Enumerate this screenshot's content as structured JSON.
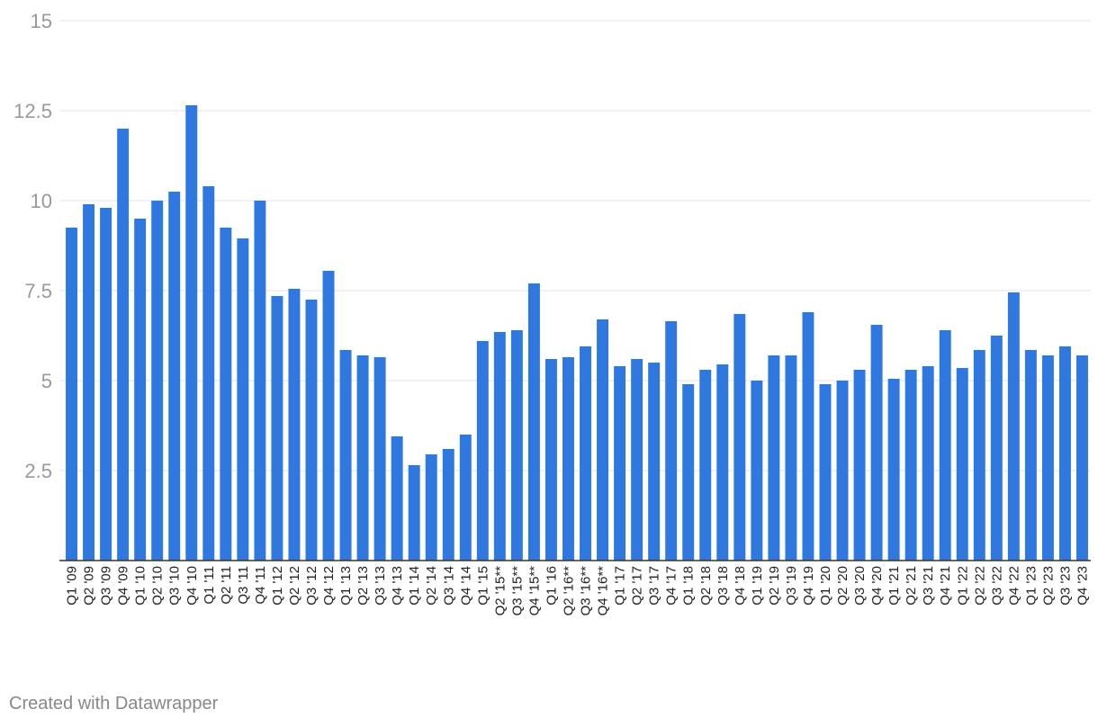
{
  "chart_data": {
    "type": "bar",
    "title": "",
    "xlabel": "",
    "ylabel": "",
    "ylim": [
      0,
      15
    ],
    "y_ticks": [
      2.5,
      5,
      7.5,
      10,
      12.5,
      15
    ],
    "y_tick_labels": [
      "2.5",
      "5",
      "7.5",
      "10",
      "12.5",
      "15"
    ],
    "grid": true,
    "bar_color": "#2f78df",
    "categories": [
      "Q1 '09",
      "Q2 '09",
      "Q3 '09",
      "Q4 '09",
      "Q1 '10",
      "Q2 '10",
      "Q3 '10",
      "Q4 '10",
      "Q1 '11",
      "Q2 '11",
      "Q3 '11",
      "Q4 '11",
      "Q1 '12",
      "Q2 '12",
      "Q3 '12",
      "Q4 '12",
      "Q1 '13",
      "Q2 '13",
      "Q3 '13",
      "Q4 '13",
      "Q1 '14",
      "Q2 '14",
      "Q3 '14",
      "Q4 '14",
      "Q1 '15",
      "Q2 '15**",
      "Q3 '15**",
      "Q4 '15**",
      "Q1 '16",
      "Q2 '16**",
      "Q3 '16**",
      "Q4 '16**",
      "Q1 '17",
      "Q2 '17",
      "Q3 '17",
      "Q4 '17",
      "Q1 '18",
      "Q2 '18",
      "Q3 '18",
      "Q4 '18",
      "Q1 '19",
      "Q2 '19",
      "Q3 '19",
      "Q4 '19",
      "Q1 '20",
      "Q2 '20",
      "Q3 '20",
      "Q4 '20",
      "Q1 '21",
      "Q2 '21",
      "Q3 '21",
      "Q4 '21",
      "Q1 '22",
      "Q2 '22",
      "Q3 '22",
      "Q4 '22",
      "Q1 '23",
      "Q2 '23",
      "Q3 '23",
      "Q4 '23"
    ],
    "values": [
      9.25,
      9.9,
      9.8,
      12.0,
      9.5,
      10.0,
      10.25,
      12.65,
      10.4,
      9.25,
      8.95,
      10.0,
      7.35,
      7.55,
      7.25,
      8.05,
      5.85,
      5.7,
      5.65,
      3.45,
      2.65,
      2.95,
      3.1,
      3.5,
      6.1,
      6.35,
      6.4,
      7.7,
      5.6,
      5.65,
      5.95,
      6.7,
      5.4,
      5.6,
      5.5,
      6.65,
      4.9,
      5.3,
      5.45,
      6.85,
      5.0,
      5.7,
      5.7,
      6.9,
      4.9,
      5.0,
      5.3,
      6.55,
      5.05,
      5.3,
      5.4,
      6.4,
      5.35,
      5.85,
      6.25,
      7.45,
      5.85,
      5.7,
      5.95,
      5.7
    ]
  },
  "footer": {
    "credit": "Created with Datawrapper"
  }
}
